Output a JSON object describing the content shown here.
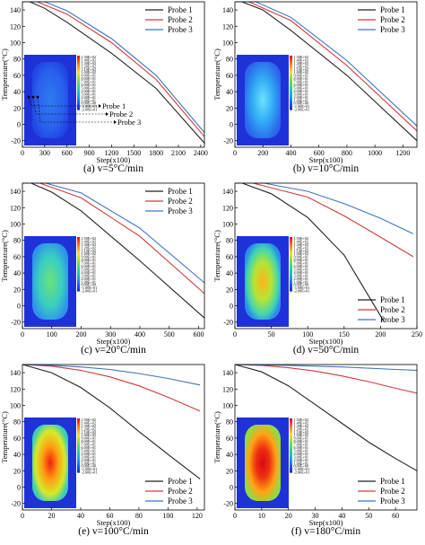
{
  "chart_data": [
    {
      "type": "line",
      "caption": "(a) v=5°C/min",
      "xlabel": "Step(x100)",
      "ylabel": "Temperature(°C)",
      "xlim": [
        0,
        2450
      ],
      "ylim": [
        -28,
        150
      ],
      "xticks": [
        0,
        300,
        600,
        900,
        1200,
        1500,
        1800,
        2100,
        2400
      ],
      "xtick_labels": [
        "0",
        "300",
        "600",
        "900",
        "1200",
        "1500",
        "1800",
        "2100",
        "2400"
      ],
      "yticks": [
        -20,
        0,
        20,
        40,
        60,
        80,
        100,
        120,
        140
      ],
      "ytick_labels": [
        "-20",
        "0",
        "20",
        "40",
        "60",
        "80",
        "100",
        "120",
        "140"
      ],
      "legend": "top-right",
      "colorbar": [
        "1.50E+02",
        "1.40E+02",
        "1.30E+02",
        "1.20E+02",
        "1.10E+02",
        "1.00E+02",
        "9.00E+01",
        "8.00E+01",
        "7.00E+01",
        "6.00E+01",
        "5.00E+01",
        "4.00E+01",
        "3.00E+01",
        "2.00E+01",
        "1.00E+01",
        "0.00E+00",
        "-1.00E+01",
        "-2.00E+01"
      ],
      "probe_labels": [
        "Probe 1",
        "Probe 2",
        "Probe 3"
      ],
      "series": [
        {
          "name": "Probe 1",
          "color": "#222222",
          "points": [
            [
              0,
              150
            ],
            [
              100,
              150
            ],
            [
              300,
              142
            ],
            [
              600,
              125
            ],
            [
              1200,
              87
            ],
            [
              1800,
              44
            ],
            [
              2450,
              -23
            ]
          ]
        },
        {
          "name": "Probe 2",
          "color": "#d03a3a",
          "points": [
            [
              0,
              150
            ],
            [
              200,
              150
            ],
            [
              600,
              135
            ],
            [
              1200,
              100
            ],
            [
              1800,
              55
            ],
            [
              2450,
              -15
            ]
          ]
        },
        {
          "name": "Probe 3",
          "color": "#3a76c0",
          "points": [
            [
              0,
              150
            ],
            [
              300,
              150
            ],
            [
              600,
              139
            ],
            [
              1200,
              105
            ],
            [
              1800,
              60
            ],
            [
              2450,
              -10
            ]
          ]
        }
      ]
    },
    {
      "type": "line",
      "caption": "(b) v=10°C/min",
      "xlabel": "Step(x100)",
      "ylabel": "Temperature(°C)",
      "xlim": [
        0,
        1300
      ],
      "ylim": [
        -28,
        150
      ],
      "xticks": [
        0,
        200,
        400,
        600,
        800,
        1000,
        1200
      ],
      "xtick_labels": [
        "0",
        "200",
        "400",
        "600",
        "800",
        "1000",
        "1200"
      ],
      "yticks": [
        -20,
        0,
        20,
        40,
        60,
        80,
        100,
        120,
        140
      ],
      "ytick_labels": [
        "-20",
        "0",
        "20",
        "40",
        "60",
        "80",
        "100",
        "120",
        "140"
      ],
      "legend": "top-right",
      "colorbar": [
        "1.50E+02",
        "1.40E+02",
        "1.30E+02",
        "1.20E+02",
        "1.10E+02",
        "1.00E+02",
        "9.00E+01",
        "8.00E+01",
        "7.00E+01",
        "6.00E+01",
        "5.00E+01",
        "4.00E+01",
        "3.00E+01",
        "2.00E+01",
        "1.00E+01",
        "0.00E+00",
        "-1.00E+01",
        "-2.00E+01"
      ],
      "series": [
        {
          "name": "Probe 1",
          "color": "#222222",
          "points": [
            [
              0,
              150
            ],
            [
              50,
              150
            ],
            [
              200,
              140
            ],
            [
              400,
              115
            ],
            [
              800,
              60
            ],
            [
              1300,
              -20
            ]
          ]
        },
        {
          "name": "Probe 2",
          "color": "#d03a3a",
          "points": [
            [
              0,
              150
            ],
            [
              100,
              150
            ],
            [
              400,
              127
            ],
            [
              800,
              72
            ],
            [
              1300,
              -8
            ]
          ]
        },
        {
          "name": "Probe 3",
          "color": "#3a76c0",
          "points": [
            [
              0,
              150
            ],
            [
              150,
              150
            ],
            [
              400,
              131
            ],
            [
              800,
              78
            ],
            [
              1300,
              -2
            ]
          ]
        }
      ]
    },
    {
      "type": "line",
      "caption": "(c) v=20°C/min",
      "xlabel": "Step(x100)",
      "ylabel": "Temperature(°C)",
      "xlim": [
        0,
        620
      ],
      "ylim": [
        -28,
        150
      ],
      "xticks": [
        0,
        100,
        200,
        300,
        400,
        500,
        600
      ],
      "xtick_labels": [
        "0",
        "100",
        "200",
        "300",
        "400",
        "500",
        "600"
      ],
      "yticks": [
        -20,
        0,
        20,
        40,
        60,
        80,
        100,
        120,
        140
      ],
      "ytick_labels": [
        "-20",
        "0",
        "20",
        "40",
        "60",
        "80",
        "100",
        "120",
        "140"
      ],
      "legend": "top-right",
      "colorbar": [
        "1.50E+02",
        "1.40E+02",
        "1.30E+02",
        "1.20E+02",
        "1.10E+02",
        "1.00E+02",
        "9.00E+01",
        "8.00E+01",
        "7.00E+01",
        "6.00E+01",
        "5.00E+01",
        "4.00E+01",
        "3.00E+01",
        "2.00E+01",
        "1.00E+01",
        "0.00E+00",
        "-1.00E+01",
        "-2.00E+01"
      ],
      "series": [
        {
          "name": "Probe 1",
          "color": "#222222",
          "points": [
            [
              0,
              150
            ],
            [
              30,
              150
            ],
            [
              100,
              139
            ],
            [
              200,
              116
            ],
            [
              400,
              55
            ],
            [
              620,
              -15
            ]
          ]
        },
        {
          "name": "Probe 2",
          "color": "#d03a3a",
          "points": [
            [
              0,
              150
            ],
            [
              60,
              150
            ],
            [
              200,
              132
            ],
            [
              400,
              85
            ],
            [
              620,
              15
            ]
          ]
        },
        {
          "name": "Probe 3",
          "color": "#3a76c0",
          "points": [
            [
              0,
              150
            ],
            [
              80,
              150
            ],
            [
              200,
              138
            ],
            [
              400,
              95
            ],
            [
              620,
              28
            ]
          ]
        }
      ]
    },
    {
      "type": "line",
      "caption": "(d) v=50°C/min",
      "xlabel": "Step(x100)",
      "ylabel": "Temperature(°C)",
      "xlim": [
        0,
        250
      ],
      "ylim": [
        -28,
        150
      ],
      "xticks": [
        0,
        50,
        100,
        150,
        200,
        250
      ],
      "xtick_labels": [
        "0",
        "50",
        "100",
        "150",
        "200",
        "250"
      ],
      "yticks": [
        -20,
        0,
        20,
        40,
        60,
        80,
        100,
        120,
        140
      ],
      "ytick_labels": [
        "-20",
        "0",
        "20",
        "40",
        "60",
        "80",
        "100",
        "120",
        "140"
      ],
      "legend": "bottom-right",
      "colorbar": [
        "1.50E+02",
        "1.40E+02",
        "1.30E+02",
        "1.20E+02",
        "1.10E+02",
        "1.00E+02",
        "9.00E+01",
        "8.00E+01",
        "7.00E+01",
        "6.00E+01",
        "5.00E+01",
        "4.00E+01",
        "3.00E+01",
        "2.00E+01",
        "1.00E+01",
        "0.00E+00",
        "-1.00E+01",
        "-2.00E+01"
      ],
      "series": [
        {
          "name": "Probe 1",
          "color": "#222222",
          "points": [
            [
              0,
              150
            ],
            [
              10,
              150
            ],
            [
              50,
              137
            ],
            [
              100,
              108
            ],
            [
              150,
              62
            ],
            [
              205,
              -20
            ]
          ]
        },
        {
          "name": "Probe 2",
          "color": "#d03a3a",
          "points": [
            [
              0,
              150
            ],
            [
              25,
              150
            ],
            [
              100,
              133
            ],
            [
              150,
              110
            ],
            [
              200,
              84
            ],
            [
              245,
              60
            ]
          ]
        },
        {
          "name": "Probe 3",
          "color": "#3a76c0",
          "points": [
            [
              0,
              150
            ],
            [
              40,
              150
            ],
            [
              100,
              140
            ],
            [
              150,
              125
            ],
            [
              200,
              107
            ],
            [
              245,
              88
            ]
          ]
        }
      ]
    },
    {
      "type": "line",
      "caption": "(e) v=100°C/min",
      "xlabel": "Step(x100)",
      "ylabel": "Temperature(°C)",
      "xlim": [
        0,
        125
      ],
      "ylim": [
        -28,
        150
      ],
      "xticks": [
        0,
        20,
        40,
        60,
        80,
        100,
        120
      ],
      "xtick_labels": [
        "0",
        "20",
        "40",
        "60",
        "80",
        "100",
        "120"
      ],
      "yticks": [
        -20,
        0,
        20,
        40,
        60,
        80,
        100,
        120,
        140
      ],
      "ytick_labels": [
        "-20",
        "0",
        "20",
        "40",
        "60",
        "80",
        "100",
        "120",
        "140"
      ],
      "legend": "bottom-right",
      "colorbar": [
        "1.50E+02",
        "1.40E+02",
        "1.30E+02",
        "1.20E+02",
        "1.10E+02",
        "1.00E+02",
        "9.00E+01",
        "8.00E+01",
        "7.00E+01",
        "6.00E+01",
        "5.00E+01",
        "4.00E+01",
        "3.00E+01",
        "2.00E+01",
        "1.00E+01",
        "0.00E+00",
        "-1.00E+01",
        "-2.00E+01"
      ],
      "series": [
        {
          "name": "Probe 1",
          "color": "#222222",
          "points": [
            [
              0,
              150
            ],
            [
              20,
              140
            ],
            [
              40,
              122
            ],
            [
              60,
              97
            ],
            [
              80,
              68
            ],
            [
              100,
              40
            ],
            [
              122,
              10
            ]
          ]
        },
        {
          "name": "Probe 2",
          "color": "#d03a3a",
          "points": [
            [
              0,
              150
            ],
            [
              20,
              148
            ],
            [
              40,
              143
            ],
            [
              60,
              135
            ],
            [
              80,
              124
            ],
            [
              100,
              110
            ],
            [
              122,
              93
            ]
          ]
        },
        {
          "name": "Probe 3",
          "color": "#3a76c0",
          "points": [
            [
              0,
              150
            ],
            [
              20,
              149
            ],
            [
              40,
              147
            ],
            [
              60,
              144
            ],
            [
              80,
              139
            ],
            [
              100,
              133
            ],
            [
              122,
              125
            ]
          ]
        }
      ]
    },
    {
      "type": "line",
      "caption": "(f) v=180°C/min",
      "xlabel": "Step(x100)",
      "ylabel": "Temperature(°C)",
      "xlim": [
        0,
        68
      ],
      "ylim": [
        -28,
        150
      ],
      "xticks": [
        0,
        10,
        20,
        30,
        40,
        50,
        60
      ],
      "xtick_labels": [
        "0",
        "10",
        "20",
        "30",
        "40",
        "50",
        "60"
      ],
      "yticks": [
        -20,
        0,
        20,
        40,
        60,
        80,
        100,
        120,
        140
      ],
      "ytick_labels": [
        "-20",
        "0",
        "20",
        "40",
        "60",
        "80",
        "100",
        "120",
        "140"
      ],
      "legend": "bottom-right",
      "colorbar": [
        "1.50E+02",
        "1.40E+02",
        "1.30E+02",
        "1.20E+02",
        "1.10E+02",
        "1.00E+02",
        "9.00E+01",
        "8.00E+01",
        "7.00E+01",
        "6.00E+01",
        "5.00E+01",
        "4.00E+01",
        "3.00E+01",
        "2.00E+01",
        "1.00E+01",
        "0.00E+00",
        "-1.00E+01",
        "-2.00E+01"
      ],
      "series": [
        {
          "name": "Probe 1",
          "color": "#222222",
          "points": [
            [
              0,
              150
            ],
            [
              10,
              141
            ],
            [
              20,
              124
            ],
            [
              30,
              101
            ],
            [
              40,
              78
            ],
            [
              50,
              55
            ],
            [
              60,
              35
            ],
            [
              68,
              20
            ]
          ]
        },
        {
          "name": "Probe 2",
          "color": "#d03a3a",
          "points": [
            [
              0,
              150
            ],
            [
              10,
              149
            ],
            [
              20,
              146
            ],
            [
              30,
              142
            ],
            [
              40,
              136
            ],
            [
              50,
              129
            ],
            [
              60,
              121
            ],
            [
              68,
              115
            ]
          ]
        },
        {
          "name": "Probe 3",
          "color": "#3a76c0",
          "points": [
            [
              0,
              150
            ],
            [
              20,
              149
            ],
            [
              40,
              147
            ],
            [
              60,
              144
            ],
            [
              68,
              143
            ]
          ]
        }
      ]
    }
  ]
}
